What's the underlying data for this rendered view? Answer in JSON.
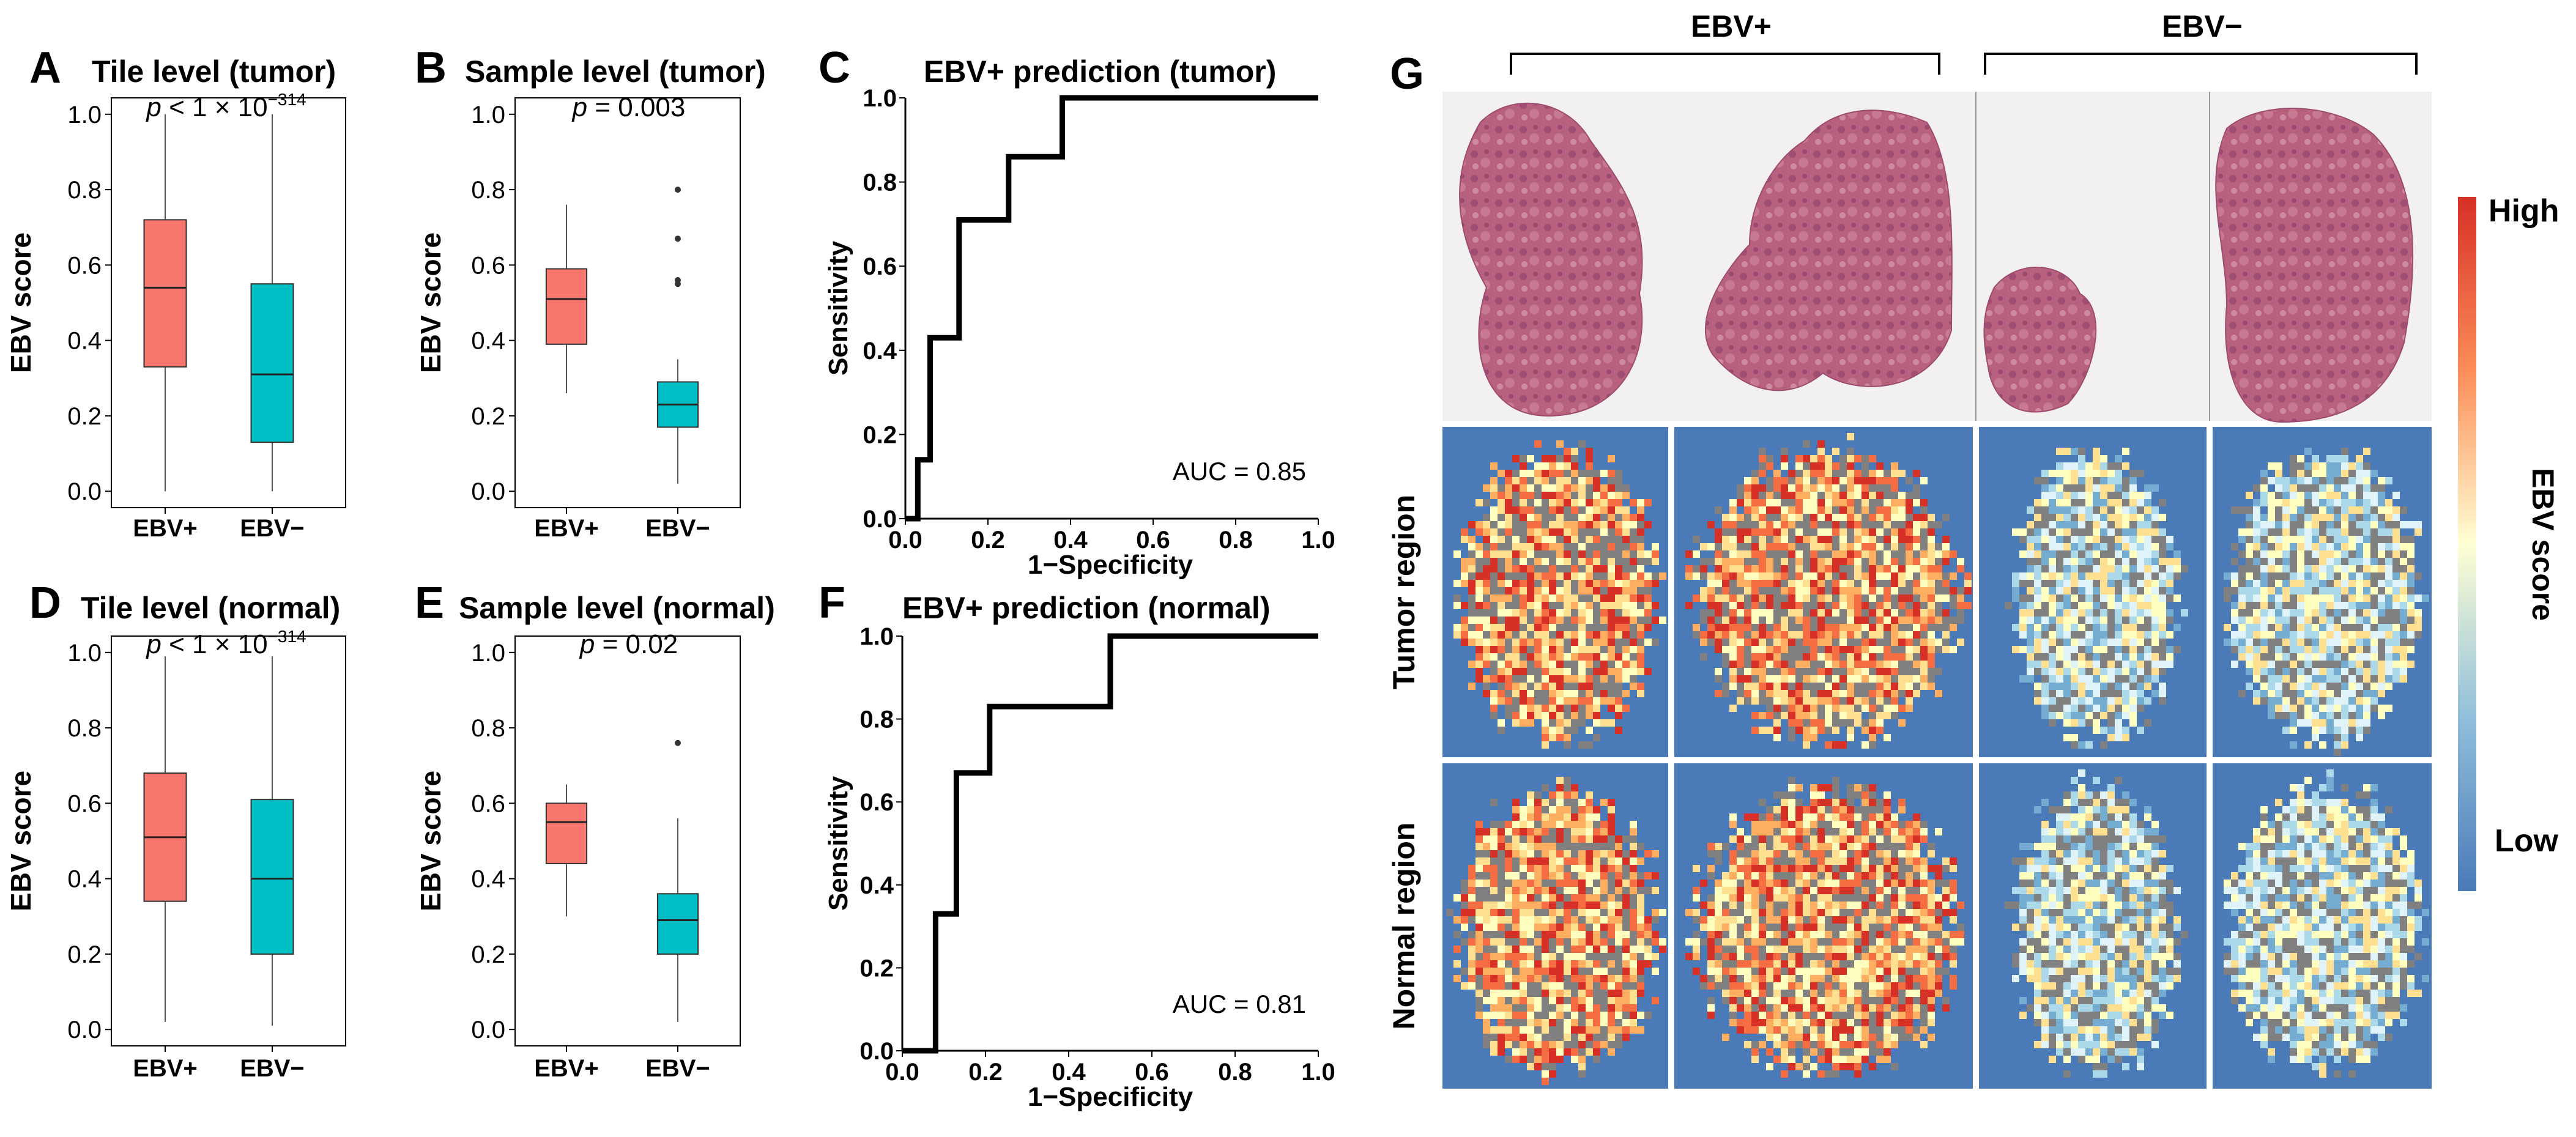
{
  "colors": {
    "ebv_pos": "#F8766D",
    "ebv_neg": "#00BFC4",
    "heat_low": "#4A7AB8",
    "heat_mid": "#FFFFD4",
    "heat_high": "#D73027",
    "bg_tissue": "#808080",
    "he_stain": "#B8617E"
  },
  "chart_data": [
    {
      "type": "box",
      "panel": "A",
      "title": "Tile level (tumor)",
      "pval_prefix": "p",
      "pval_op": " < ",
      "pval_text": "1 × 10",
      "pval_exp": "−314",
      "ylabel": "EBV score",
      "ylim": [
        0,
        1.0
      ],
      "yticks": [
        "0.0",
        "0.2",
        "0.4",
        "0.6",
        "0.8",
        "1.0"
      ],
      "categories": [
        "EBV+",
        "EBV−"
      ],
      "boxes": [
        {
          "q1": 0.33,
          "median": 0.54,
          "q3": 0.72,
          "lower": 0.0,
          "upper": 1.0,
          "outliers": []
        },
        {
          "q1": 0.13,
          "median": 0.31,
          "q3": 0.55,
          "lower": 0.0,
          "upper": 1.0,
          "outliers": []
        }
      ]
    },
    {
      "type": "box",
      "panel": "B",
      "title": "Sample level (tumor)",
      "pval_prefix": "p",
      "pval_op": " = ",
      "pval_text": "0.003",
      "pval_exp": "",
      "ylabel": "EBV score",
      "ylim": [
        0,
        1.0
      ],
      "yticks": [
        "0.0",
        "0.2",
        "0.4",
        "0.6",
        "0.8",
        "1.0"
      ],
      "categories": [
        "EBV+",
        "EBV−"
      ],
      "boxes": [
        {
          "q1": 0.39,
          "median": 0.51,
          "q3": 0.59,
          "lower": 0.26,
          "upper": 0.76,
          "outliers": []
        },
        {
          "q1": 0.17,
          "median": 0.23,
          "q3": 0.29,
          "lower": 0.02,
          "upper": 0.35,
          "outliers": [
            0.55,
            0.56,
            0.67,
            0.8
          ]
        }
      ]
    },
    {
      "type": "roc",
      "panel": "C",
      "title": "EBV+ prediction (tumor)",
      "xlabel": "1−Specificity",
      "ylabel": "Sensitivity",
      "xlim": [
        0,
        1
      ],
      "ylim": [
        0,
        1
      ],
      "ticks": [
        "0.0",
        "0.2",
        "0.4",
        "0.6",
        "0.8",
        "1.0"
      ],
      "auc_label": "AUC = 0.85",
      "x": [
        0,
        0.03,
        0.03,
        0.06,
        0.06,
        0.13,
        0.13,
        0.25,
        0.25,
        0.38,
        0.38,
        1.0
      ],
      "y": [
        0,
        0,
        0.14,
        0.14,
        0.43,
        0.43,
        0.71,
        0.71,
        0.86,
        0.86,
        1.0,
        1.0
      ]
    },
    {
      "type": "box",
      "panel": "D",
      "title": "Tile level (normal)",
      "pval_prefix": "p",
      "pval_op": " < ",
      "pval_text": "1 × 10",
      "pval_exp": "−314",
      "ylabel": "EBV score",
      "ylim": [
        0,
        1.0
      ],
      "yticks": [
        "0.0",
        "0.2",
        "0.4",
        "0.6",
        "0.8",
        "1.0"
      ],
      "categories": [
        "EBV+",
        "EBV−"
      ],
      "boxes": [
        {
          "q1": 0.34,
          "median": 0.51,
          "q3": 0.68,
          "lower": 0.02,
          "upper": 0.99,
          "outliers": []
        },
        {
          "q1": 0.2,
          "median": 0.4,
          "q3": 0.61,
          "lower": 0.01,
          "upper": 0.99,
          "outliers": []
        }
      ]
    },
    {
      "type": "box",
      "panel": "E",
      "title": "Sample level (normal)",
      "pval_prefix": "p",
      "pval_op": " = ",
      "pval_text": "0.02",
      "pval_exp": "",
      "ylabel": "EBV score",
      "ylim": [
        0,
        1.0
      ],
      "yticks": [
        "0.0",
        "0.2",
        "0.4",
        "0.6",
        "0.8",
        "1.0"
      ],
      "categories": [
        "EBV+",
        "EBV−"
      ],
      "boxes": [
        {
          "q1": 0.44,
          "median": 0.55,
          "q3": 0.6,
          "lower": 0.3,
          "upper": 0.65,
          "outliers": []
        },
        {
          "q1": 0.2,
          "median": 0.29,
          "q3": 0.36,
          "lower": 0.02,
          "upper": 0.56,
          "outliers": [
            0.76
          ]
        }
      ]
    },
    {
      "type": "roc",
      "panel": "F",
      "title": "EBV+ prediction (normal)",
      "xlabel": "1−Specificity",
      "ylabel": "Sensitivity",
      "xlim": [
        0,
        1
      ],
      "ylim": [
        0,
        1
      ],
      "ticks": [
        "0.0",
        "0.2",
        "0.4",
        "0.6",
        "0.8",
        "1.0"
      ],
      "auc_label": "AUC = 0.81",
      "x": [
        0,
        0.08,
        0.08,
        0.13,
        0.13,
        0.21,
        0.21,
        0.5,
        0.5,
        1.0
      ],
      "y": [
        0,
        0,
        0.33,
        0.33,
        0.67,
        0.67,
        0.83,
        0.83,
        1.0,
        1.0
      ]
    }
  ],
  "panel_g": {
    "letter": "G",
    "groups": [
      "EBV+",
      "EBV−"
    ],
    "rows": [
      "Tumor region",
      "Normal region"
    ],
    "colorbar": {
      "high": "High",
      "low": "Low",
      "label": "EBV score"
    }
  }
}
